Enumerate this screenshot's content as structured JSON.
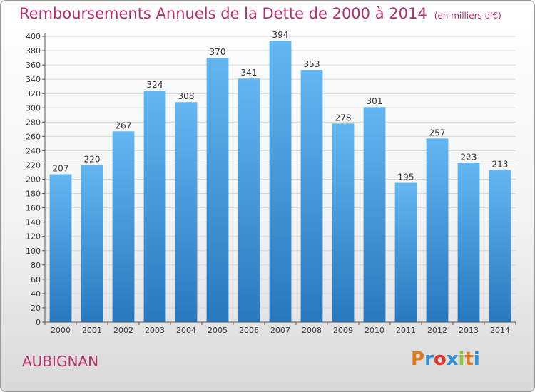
{
  "title": "Remboursements Annuels de la Dette de 2000 à 2014",
  "unit_note": "(en milliers d'€)",
  "location": "AUBIGNAN",
  "logo": {
    "text": "Proxiti",
    "colors": [
      "#e07a1f",
      "#2f8fd8",
      "#e0382f",
      "#2f8fd8",
      "#8cc63f",
      "#e07a1f",
      "#2f8fd8"
    ]
  },
  "colors": {
    "bar_light": "#62b7f2",
    "bar_dark": "#2878be",
    "accent": "#b5306a",
    "grid": "#d6d6d6"
  },
  "chart_data": {
    "type": "bar",
    "title": "Remboursements Annuels de la Dette de 2000 à 2014",
    "xlabel": "",
    "ylabel": "",
    "categories": [
      "2000",
      "2001",
      "2002",
      "2003",
      "2004",
      "2005",
      "2006",
      "2007",
      "2008",
      "2009",
      "2010",
      "2011",
      "2012",
      "2013",
      "2014"
    ],
    "values": [
      207,
      220,
      267,
      324,
      308,
      370,
      341,
      394,
      353,
      278,
      301,
      195,
      257,
      223,
      213
    ],
    "ylim": [
      0,
      400
    ],
    "yticks": [
      0,
      20,
      40,
      60,
      80,
      100,
      120,
      140,
      160,
      180,
      200,
      220,
      240,
      260,
      280,
      300,
      320,
      340,
      360,
      380,
      400
    ],
    "grid": true,
    "legend": "none"
  }
}
